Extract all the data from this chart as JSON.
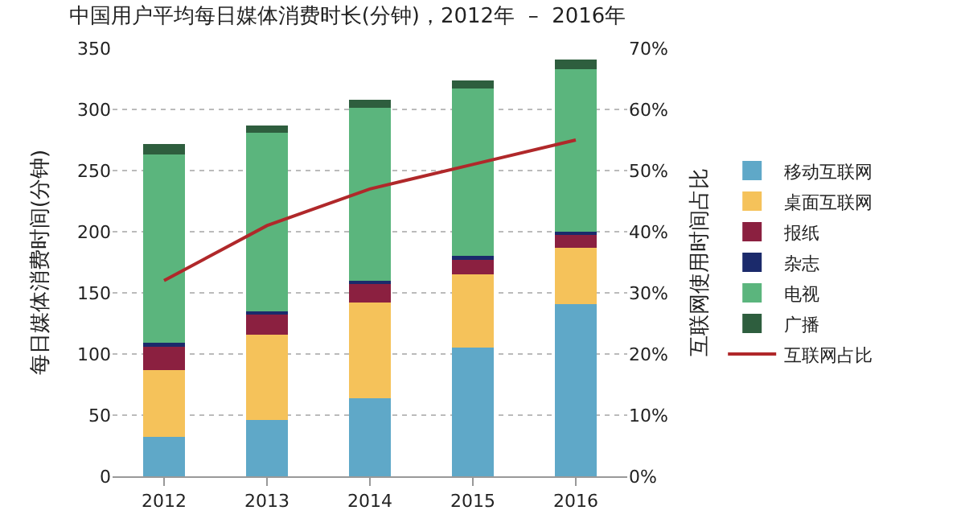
{
  "chart_data": {
    "type": "bar",
    "stacked": true,
    "title": "中国用户平均每日媒体消费时长(分钟)，2012年  –  2016年",
    "ylabel": "每日媒体消费时间(分钟)",
    "y2label": "互联网使用时间占比",
    "categories": [
      "2012",
      "2013",
      "2014",
      "2015",
      "2016"
    ],
    "series": [
      {
        "name": "移动互联网",
        "color": "#5fa8c8",
        "values": [
          32,
          46,
          64,
          105,
          141
        ]
      },
      {
        "name": "桌面互联网",
        "color": "#f5c25a",
        "values": [
          55,
          70,
          78,
          60,
          46
        ]
      },
      {
        "name": "报纸",
        "color": "#8b2040",
        "values": [
          19,
          16,
          15,
          12,
          11
        ]
      },
      {
        "name": "杂志",
        "color": "#1b2a6b",
        "values": [
          3,
          3,
          3,
          3,
          2
        ]
      },
      {
        "name": "电视",
        "color": "#5bb57d",
        "values": [
          154,
          146,
          141,
          137,
          133
        ]
      },
      {
        "name": "广播",
        "color": "#2e5e3e",
        "values": [
          9,
          6,
          7,
          7,
          8
        ]
      },
      {
        "name": "互联网占比",
        "type": "line",
        "axis": "y2",
        "color": "#b0282a",
        "values": [
          32,
          41,
          47,
          51,
          55
        ]
      }
    ],
    "ylim": [
      0,
      350
    ],
    "yticks": [
      0,
      50,
      100,
      150,
      200,
      250,
      300,
      350
    ],
    "y2lim": [
      0,
      70
    ],
    "y2ticks": [
      {
        "value": 0,
        "label": "0%"
      },
      {
        "value": 10,
        "label": "10%"
      },
      {
        "value": 20,
        "label": "20%"
      },
      {
        "value": 30,
        "label": "30%"
      },
      {
        "value": 40,
        "label": "40%"
      },
      {
        "value": 50,
        "label": "50%"
      },
      {
        "value": 60,
        "label": "60%"
      },
      {
        "value": 70,
        "label": "70%"
      }
    ],
    "grid": "y",
    "legend": "right",
    "marker": "none",
    "line_style": "solid"
  }
}
